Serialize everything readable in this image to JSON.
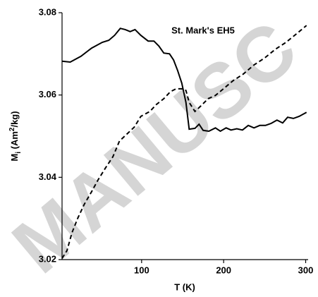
{
  "chart_data": {
    "type": "line",
    "watermark": "MANUSC",
    "annotation": "St. Mark's EH5",
    "xlabel": "T (K)",
    "ylabel": [
      "M",
      "i",
      " (Am",
      "2",
      "/kg)"
    ],
    "xlim": [
      3,
      303
    ],
    "xticks": [
      100,
      200,
      300
    ],
    "ylim": [
      3.02,
      3.08
    ],
    "yticks": [
      3.02,
      3.04,
      3.06,
      3.08
    ],
    "series": [
      {
        "color": "#000000",
        "dash": "solid",
        "x": [
          3,
          13,
          26,
          39,
          52,
          60,
          67,
          74,
          80,
          86,
          92,
          99,
          108,
          115,
          121,
          127,
          134,
          139,
          144,
          149,
          154,
          158,
          165,
          170,
          175,
          182,
          190,
          196,
          203,
          209,
          216,
          223,
          230,
          237,
          244,
          251,
          258,
          265,
          272,
          278,
          285,
          292,
          301
        ],
        "values": [
          3.0682,
          3.068,
          3.0694,
          3.0714,
          3.0728,
          3.0733,
          3.0745,
          3.0762,
          3.0759,
          3.0754,
          3.0759,
          3.0745,
          3.0731,
          3.0731,
          3.0719,
          3.0702,
          3.07,
          3.0685,
          3.0659,
          3.0629,
          3.0582,
          3.0517,
          3.0519,
          3.0529,
          3.0514,
          3.0512,
          3.052,
          3.0512,
          3.052,
          3.0515,
          3.0518,
          3.0515,
          3.0526,
          3.052,
          3.0526,
          3.0526,
          3.0531,
          3.0539,
          3.0532,
          3.0546,
          3.0543,
          3.0548,
          3.0558
        ]
      },
      {
        "color": "#000000",
        "dash": "dashed",
        "x": [
          3,
          9,
          15,
          22,
          30,
          39,
          47,
          56,
          65,
          73,
          82,
          91,
          99,
          110,
          118,
          127,
          135,
          142,
          149,
          154,
          158,
          165,
          172,
          181,
          190,
          201,
          211,
          224,
          237,
          250,
          263,
          276,
          289,
          301
        ],
        "values": [
          3.0203,
          3.0222,
          3.0265,
          3.03,
          3.0334,
          3.0365,
          3.0394,
          3.0423,
          3.045,
          3.0488,
          3.0505,
          3.0522,
          3.0548,
          3.056,
          3.0577,
          3.0591,
          3.0608,
          3.0615,
          3.0615,
          3.0611,
          3.0582,
          3.056,
          3.0573,
          3.0591,
          3.0599,
          3.0617,
          3.0634,
          3.0651,
          3.0673,
          3.069,
          3.0711,
          3.0728,
          3.0749,
          3.0769
        ]
      }
    ]
  }
}
